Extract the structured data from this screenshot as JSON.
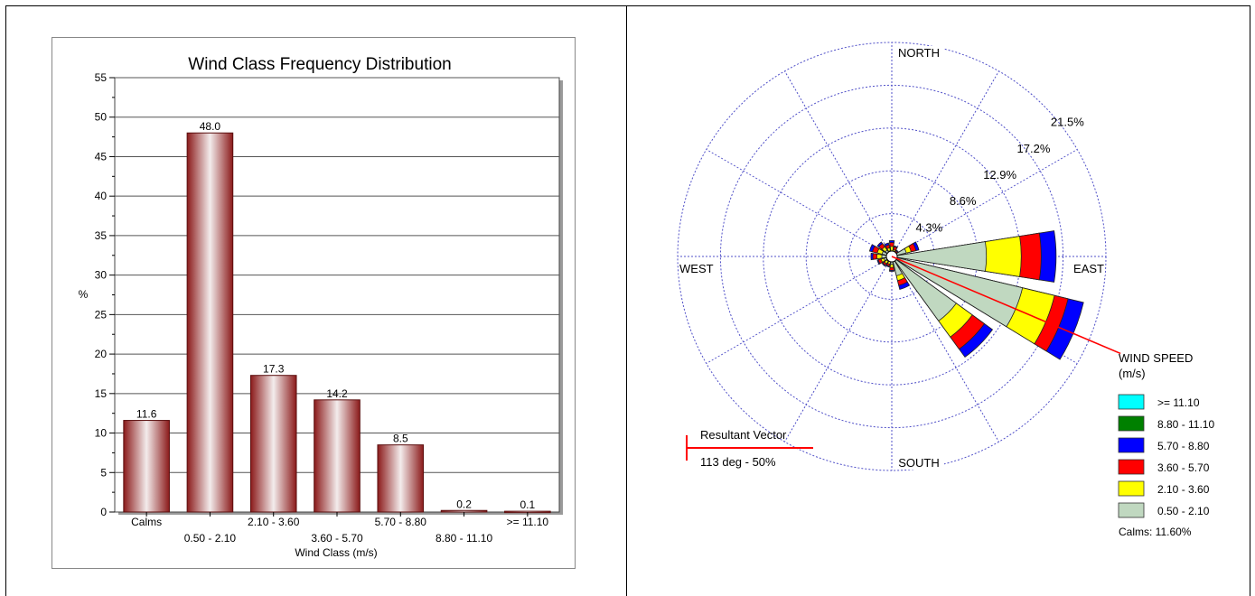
{
  "chart_data": [
    {
      "type": "bar",
      "title": "Wind Class Frequency Distribution",
      "xlabel": "Wind Class (m/s)",
      "ylabel": "%",
      "ylim": [
        0,
        55
      ],
      "yticks": [
        0,
        5,
        10,
        15,
        20,
        25,
        30,
        35,
        40,
        45,
        50,
        55
      ],
      "categories": [
        "Calms",
        "0.50 - 2.10",
        "2.10 - 3.60",
        "3.60 - 5.70",
        "5.70 - 8.80",
        "8.80 - 11.10",
        ">= 11.10"
      ],
      "values": [
        11.6,
        48.0,
        17.3,
        14.2,
        8.5,
        0.2,
        0.1
      ],
      "value_labels": [
        "11.6",
        "48.0",
        "17.3",
        "14.2",
        "8.5",
        "0.2",
        "0.1"
      ],
      "grid": true,
      "bar_color": "#8b1a1a"
    },
    {
      "type": "windrose",
      "compass_labels": [
        "NORTH",
        "EAST",
        "SOUTH",
        "WEST"
      ],
      "ring_labels": [
        "4.3%",
        "8.6%",
        "12.9%",
        "17.2%",
        "21.5%"
      ],
      "ring_values": [
        4.3,
        8.6,
        12.9,
        17.2,
        21.5
      ],
      "rmax": 21.5,
      "speed_classes": [
        ">= 11.10",
        "8.80 - 11.10",
        "5.70 - 8.80",
        "3.60 - 5.70",
        "2.10 - 3.60",
        "0.50 - 2.10"
      ],
      "speed_colors": [
        "#00ffff",
        "#008000",
        "#0000ff",
        "#ff0000",
        "#ffff00",
        "#c0d8c0"
      ],
      "directions": [
        0,
        22.5,
        45,
        67.5,
        90,
        112.5,
        135,
        157.5,
        180,
        202.5,
        225,
        247.5,
        270,
        292.5,
        315,
        337.5
      ],
      "cumulative_percent": [
        [
          0.5,
          1.0,
          1.4,
          1.6,
          1.6,
          1.6
        ],
        [
          0.4,
          0.7,
          1.0,
          1.1,
          1.1,
          1.1
        ],
        [
          0.3,
          0.5,
          0.7,
          0.8,
          0.8,
          0.8
        ],
        [
          1.5,
          2.0,
          2.5,
          2.8,
          2.8,
          2.8
        ],
        [
          9.5,
          13.0,
          15.0,
          16.5,
          16.5,
          16.5
        ],
        [
          13.5,
          16.8,
          18.2,
          19.8,
          19.8,
          19.8
        ],
        [
          8.0,
          10.0,
          11.5,
          12.5,
          12.5,
          12.5
        ],
        [
          2.0,
          2.5,
          3.0,
          3.4,
          3.4,
          3.4
        ],
        [
          0.8,
          1.1,
          1.4,
          1.5,
          1.5,
          1.5
        ],
        [
          0.5,
          0.8,
          1.0,
          1.1,
          1.1,
          1.1
        ],
        [
          0.6,
          0.9,
          1.1,
          1.2,
          1.2,
          1.2
        ],
        [
          0.8,
          1.1,
          1.4,
          1.5,
          1.5,
          1.5
        ],
        [
          1.0,
          1.5,
          1.9,
          2.1,
          2.1,
          2.1
        ],
        [
          1.0,
          1.5,
          2.0,
          2.3,
          2.3,
          2.3
        ],
        [
          0.8,
          1.2,
          1.6,
          1.8,
          1.8,
          1.8
        ],
        [
          0.6,
          0.9,
          1.2,
          1.4,
          1.4,
          1.4
        ]
      ],
      "legend_title": "WIND SPEED",
      "legend_unit": "(m/s)",
      "calms_label": "Calms: 11.60%",
      "resultant_vector": {
        "label": "Resultant Vector",
        "value_label": "113 deg - 50%",
        "direction_deg": 113,
        "color": "#ff0000"
      }
    }
  ]
}
